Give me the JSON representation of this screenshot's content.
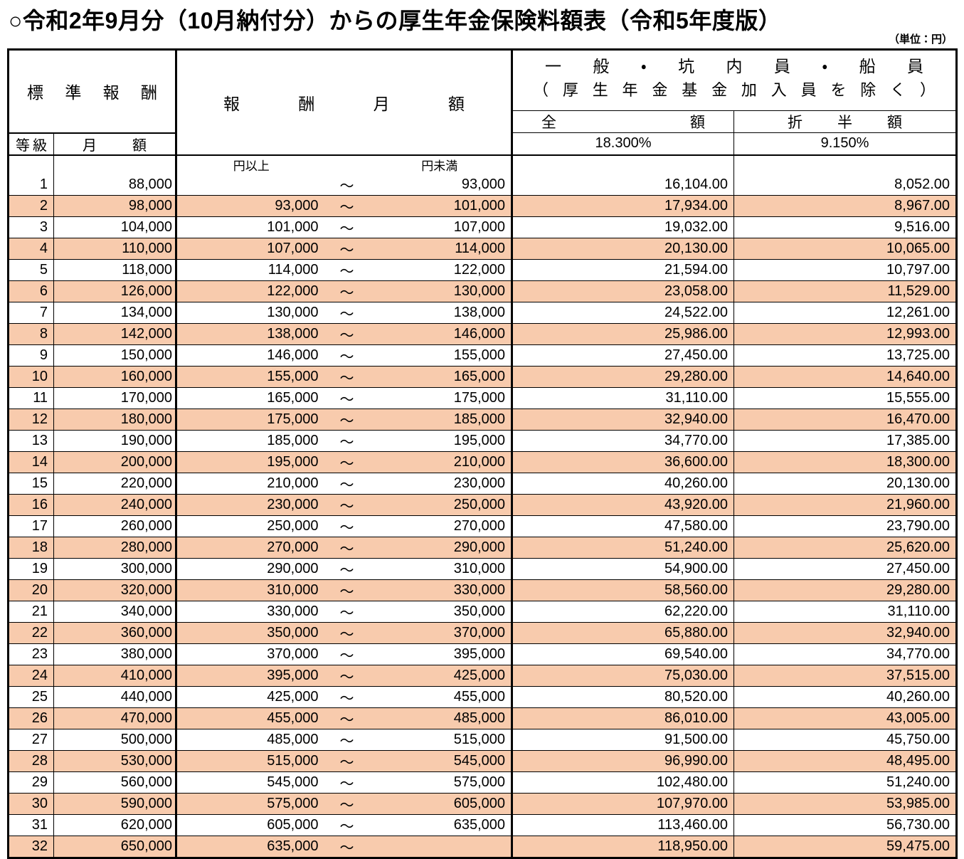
{
  "title": "○令和2年9月分（10月納付分）からの厚生年金保険料額表（令和5年度版）",
  "unit_note": "（単位：円）",
  "colors": {
    "row_highlight": "#F8CBAD",
    "border": "#000000",
    "text": "#000000"
  },
  "table": {
    "headers": {
      "standard_remuneration": "標準報酬",
      "grade": "等級",
      "monthly_amount": "月額",
      "remuneration_monthly": "報酬月額",
      "group_line1": "一般・坑内員・船員",
      "group_line2": "（厚生年金基金加入員を除く）",
      "full_amount": "全額",
      "half_amount": "折半額",
      "full_rate": "18.300%",
      "half_rate": "9.150%",
      "yen_or_more": "円以上",
      "yen_less_than": "円未満",
      "tilde": "～"
    },
    "row_fields": [
      "grade",
      "monthly_amount",
      "range_lower",
      "range_upper",
      "full_premium",
      "half_premium"
    ],
    "rows": [
      [
        "1",
        "88,000",
        "",
        "93,000",
        "16,104.00",
        "8,052.00"
      ],
      [
        "2",
        "98,000",
        "93,000",
        "101,000",
        "17,934.00",
        "8,967.00"
      ],
      [
        "3",
        "104,000",
        "101,000",
        "107,000",
        "19,032.00",
        "9,516.00"
      ],
      [
        "4",
        "110,000",
        "107,000",
        "114,000",
        "20,130.00",
        "10,065.00"
      ],
      [
        "5",
        "118,000",
        "114,000",
        "122,000",
        "21,594.00",
        "10,797.00"
      ],
      [
        "6",
        "126,000",
        "122,000",
        "130,000",
        "23,058.00",
        "11,529.00"
      ],
      [
        "7",
        "134,000",
        "130,000",
        "138,000",
        "24,522.00",
        "12,261.00"
      ],
      [
        "8",
        "142,000",
        "138,000",
        "146,000",
        "25,986.00",
        "12,993.00"
      ],
      [
        "9",
        "150,000",
        "146,000",
        "155,000",
        "27,450.00",
        "13,725.00"
      ],
      [
        "10",
        "160,000",
        "155,000",
        "165,000",
        "29,280.00",
        "14,640.00"
      ],
      [
        "11",
        "170,000",
        "165,000",
        "175,000",
        "31,110.00",
        "15,555.00"
      ],
      [
        "12",
        "180,000",
        "175,000",
        "185,000",
        "32,940.00",
        "16,470.00"
      ],
      [
        "13",
        "190,000",
        "185,000",
        "195,000",
        "34,770.00",
        "17,385.00"
      ],
      [
        "14",
        "200,000",
        "195,000",
        "210,000",
        "36,600.00",
        "18,300.00"
      ],
      [
        "15",
        "220,000",
        "210,000",
        "230,000",
        "40,260.00",
        "20,130.00"
      ],
      [
        "16",
        "240,000",
        "230,000",
        "250,000",
        "43,920.00",
        "21,960.00"
      ],
      [
        "17",
        "260,000",
        "250,000",
        "270,000",
        "47,580.00",
        "23,790.00"
      ],
      [
        "18",
        "280,000",
        "270,000",
        "290,000",
        "51,240.00",
        "25,620.00"
      ],
      [
        "19",
        "300,000",
        "290,000",
        "310,000",
        "54,900.00",
        "27,450.00"
      ],
      [
        "20",
        "320,000",
        "310,000",
        "330,000",
        "58,560.00",
        "29,280.00"
      ],
      [
        "21",
        "340,000",
        "330,000",
        "350,000",
        "62,220.00",
        "31,110.00"
      ],
      [
        "22",
        "360,000",
        "350,000",
        "370,000",
        "65,880.00",
        "32,940.00"
      ],
      [
        "23",
        "380,000",
        "370,000",
        "395,000",
        "69,540.00",
        "34,770.00"
      ],
      [
        "24",
        "410,000",
        "395,000",
        "425,000",
        "75,030.00",
        "37,515.00"
      ],
      [
        "25",
        "440,000",
        "425,000",
        "455,000",
        "80,520.00",
        "40,260.00"
      ],
      [
        "26",
        "470,000",
        "455,000",
        "485,000",
        "86,010.00",
        "43,005.00"
      ],
      [
        "27",
        "500,000",
        "485,000",
        "515,000",
        "91,500.00",
        "45,750.00"
      ],
      [
        "28",
        "530,000",
        "515,000",
        "545,000",
        "96,990.00",
        "48,495.00"
      ],
      [
        "29",
        "560,000",
        "545,000",
        "575,000",
        "102,480.00",
        "51,240.00"
      ],
      [
        "30",
        "590,000",
        "575,000",
        "605,000",
        "107,970.00",
        "53,985.00"
      ],
      [
        "31",
        "620,000",
        "605,000",
        "635,000",
        "113,460.00",
        "56,730.00"
      ],
      [
        "32",
        "650,000",
        "635,000",
        "",
        "118,950.00",
        "59,475.00"
      ]
    ]
  }
}
